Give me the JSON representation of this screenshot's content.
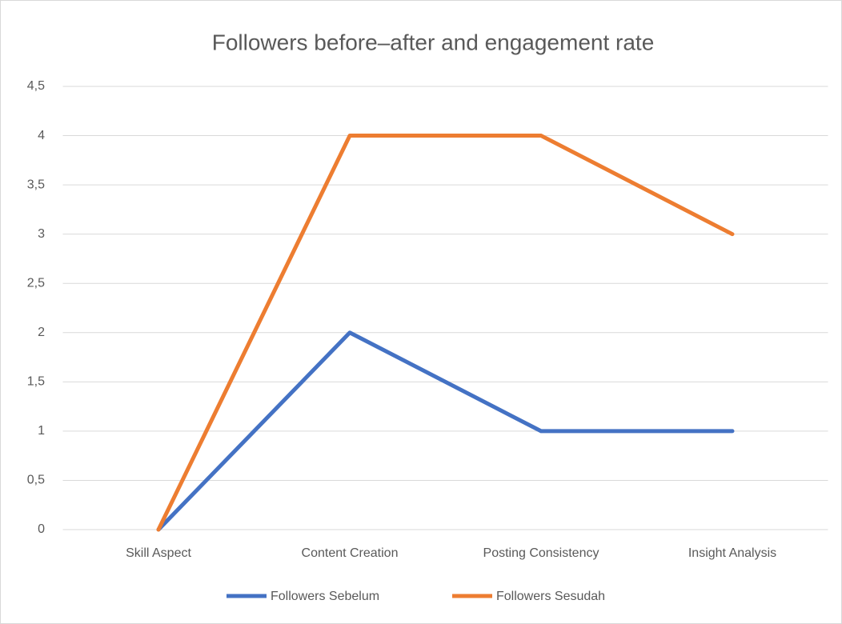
{
  "chart_data": {
    "type": "line",
    "title": "Followers before–after and engagement rate",
    "categories": [
      "Skill Aspect",
      "Content Creation",
      "Posting Consistency",
      "Insight Analysis"
    ],
    "series": [
      {
        "name": "Followers Sebelum",
        "color": "#4472c4",
        "values": [
          0,
          2,
          1,
          1
        ]
      },
      {
        "name": "Followers Sesudah",
        "color": "#ed7d31",
        "values": [
          0,
          4,
          4,
          3
        ]
      }
    ],
    "ylim": [
      0,
      4.5
    ],
    "yticks": [
      0,
      {
        "value": 0.5,
        "label": "0,5"
      },
      1,
      {
        "value": 1.5,
        "label": "1,5"
      },
      2,
      {
        "value": 2.5,
        "label": "2,5"
      },
      3,
      {
        "value": 3.5,
        "label": "3,5"
      },
      4,
      {
        "value": 4.5,
        "label": "4,5"
      }
    ],
    "grid": true,
    "legend": "bottom"
  }
}
